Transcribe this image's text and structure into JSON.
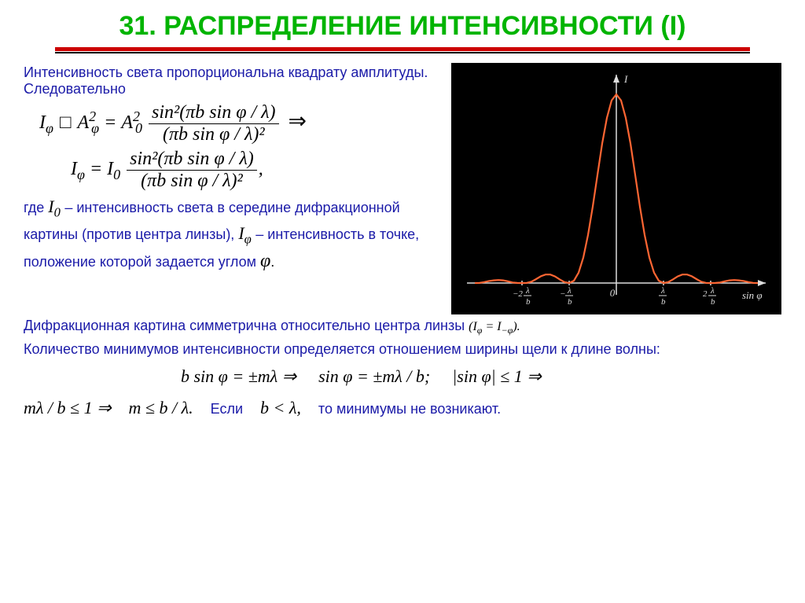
{
  "title": {
    "text": "31. РАСПРЕДЕЛЕНИЕ ИНТЕНСИВНОСТИ (I)",
    "color": "#00b400",
    "fontsize": 34
  },
  "underline": {
    "red": "#cc0000",
    "black": "#000000"
  },
  "intro": {
    "text": "Интенсивность света пропорциональна квадрату амплитуды. Следовательно",
    "color": "#1a1aa8",
    "fontsize": 18
  },
  "formula1": {
    "left": "I",
    "leftsub": "φ",
    "proportional": "□",
    "A": "A",
    "Asub": "φ",
    "Asup": "2",
    "eq": "=",
    "A0": "A",
    "A0sub": "0",
    "A0sup": "2",
    "numerator": "sin²(πb sin φ / λ)",
    "denominator": "(πb sin φ / λ)²",
    "implies": "⇒",
    "fontsize": 24
  },
  "formula2": {
    "left": "I",
    "leftsub": "φ",
    "eq": "=",
    "I0": "I",
    "I0sub": "0",
    "numerator": "sin²(πb sin φ / λ)",
    "denominator": "(πb sin φ / λ)²",
    "comma": ",",
    "fontsize": 24
  },
  "desc1": {
    "prefix": "где ",
    "I0": "I",
    "I0sub": "0",
    "middle": " – интенсивность света в середине дифракционной картины (против центра линзы), ",
    "Iphi": "I",
    "Iphisub": "φ",
    "suffix": " – интенсивность  в точке, положение которой задается углом ",
    "phi": "φ",
    "dot": ".",
    "color": "#1a1aa8",
    "fontsize": 18
  },
  "symmetry": {
    "text": "Дифракционная картина симметрична относительно центра линзы ",
    "formula_lhs": "(I",
    "formula_sub1": "φ",
    "formula_eq": " = I",
    "formula_sub2": "−φ",
    "formula_rhs": ").",
    "color": "#1a1aa8",
    "fontsize": 18
  },
  "minima_count": {
    "text": "Количество минимумов интенсивности определяется отношением ширины щели к длине волны:",
    "color": "#1a1aa8",
    "fontsize": 18
  },
  "cond1": {
    "text": "b sin φ = ±mλ ⇒",
    "fontsize": 22
  },
  "cond2": {
    "text": "sin φ = ±mλ / b;",
    "fontsize": 22
  },
  "cond3": {
    "text": "|sin φ| ≤ 1 ⇒",
    "fontsize": 22
  },
  "cond4": {
    "text": "mλ / b ≤ 1 ⇒",
    "fontsize": 22
  },
  "cond5": {
    "text": "m ≤ b / λ.",
    "fontsize": 22
  },
  "if_label": {
    "text": "Если",
    "color": "#1a1aa8",
    "fontsize": 18
  },
  "cond6": {
    "text": "b < λ,",
    "fontsize": 22
  },
  "then_label": {
    "text": "то минимумы не возникают.",
    "color": "#1a1aa8",
    "fontsize": 18
  },
  "chart": {
    "type": "line",
    "background_color": "#000000",
    "curve_color": "#ff6633",
    "axis_color": "#dddddd",
    "label_color": "#dddddd",
    "x_label": "sin φ",
    "y_label": "I",
    "xlim": [
      -3,
      3
    ],
    "ylim": [
      0,
      1.05
    ],
    "xtick_labels": [
      "-2λ/b",
      "-λ/b",
      "0",
      "λ/b",
      "2λ/b"
    ],
    "xtick_positions": [
      -2,
      -1,
      0,
      1,
      2
    ],
    "sinc2_samples_x": [
      -3,
      -2.9,
      -2.8,
      -2.7,
      -2.6,
      -2.5,
      -2.4,
      -2.3,
      -2.2,
      -2.1,
      -2,
      -1.9,
      -1.8,
      -1.7,
      -1.6,
      -1.5,
      -1.4,
      -1.3,
      -1.2,
      -1.1,
      -1,
      -0.9,
      -0.8,
      -0.7,
      -0.6,
      -0.5,
      -0.4,
      -0.3,
      -0.2,
      -0.1,
      0,
      0.1,
      0.2,
      0.3,
      0.4,
      0.5,
      0.6,
      0.7,
      0.8,
      0.9,
      1,
      1.1,
      1.2,
      1.3,
      1.4,
      1.5,
      1.6,
      1.7,
      1.8,
      1.9,
      2,
      2.1,
      2.2,
      2.3,
      2.4,
      2.5,
      2.6,
      2.7,
      2.8,
      2.9,
      3
    ],
    "sinc2_samples_y": [
      0,
      0.001,
      0.005,
      0.011,
      0.014,
      0.016,
      0.014,
      0.009,
      0.003,
      0.0003,
      0,
      0.0007,
      0.007,
      0.021,
      0.036,
      0.045,
      0.045,
      0.035,
      0.019,
      0.005,
      0,
      0.012,
      0.055,
      0.135,
      0.255,
      0.405,
      0.573,
      0.739,
      0.875,
      0.968,
      1,
      0.968,
      0.875,
      0.739,
      0.573,
      0.405,
      0.255,
      0.135,
      0.055,
      0.012,
      0,
      0.005,
      0.019,
      0.035,
      0.045,
      0.045,
      0.036,
      0.021,
      0.007,
      0.0007,
      0,
      0.0003,
      0.003,
      0.009,
      0.014,
      0.016,
      0.014,
      0.011,
      0.005,
      0.001,
      0
    ]
  }
}
